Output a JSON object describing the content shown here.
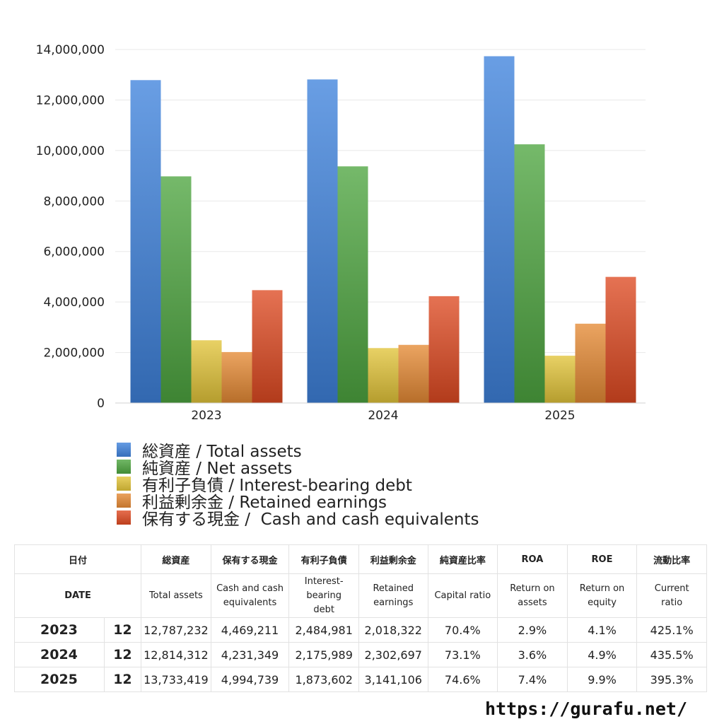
{
  "chart_data": {
    "type": "bar",
    "categories": [
      "2023",
      "2024",
      "2025"
    ],
    "ylim": [
      0,
      14000000
    ],
    "yticks": [
      "0",
      "2,000,000",
      "4,000,000",
      "6,000,000",
      "8,000,000",
      "10,000,000",
      "12,000,000",
      "14,000,000"
    ],
    "series": [
      {
        "name": "総資産 / Total assets",
        "color": "#3f82dc",
        "values": [
          12787232,
          12814312,
          13733419
        ]
      },
      {
        "name": "純資産 / Net assets",
        "color": "#4ea540",
        "values": [
          8976000,
          9372000,
          10245000
        ]
      },
      {
        "name": "有利子負債 / Interest-bearing debt",
        "color": "#e2c43a",
        "values": [
          2484981,
          2175989,
          1873602
        ]
      },
      {
        "name": "利益剰余金 / Retained earnings",
        "color": "#e58a35",
        "values": [
          2018322,
          2302697,
          3141106
        ]
      },
      {
        "name": "保有する現金 /  Cash and cash equivalents",
        "color": "#de4a22",
        "values": [
          4469211,
          4231349,
          4994739
        ]
      }
    ]
  },
  "table": {
    "header_jp": [
      "日付",
      "総資産",
      "保有する現金",
      "有利子負債",
      "利益剰余金",
      "純資産比率",
      "ROA",
      "ROE",
      "流動比率"
    ],
    "header_en": [
      "DATE",
      "Total assets",
      "Cash and cash\nequivalents",
      "Interest-\nbearing\ndebt",
      "Retained\nearnings",
      "Capital ratio",
      "Return on\nassets",
      "Return on\nequity",
      "Current\nratio"
    ],
    "rows": [
      [
        "2023",
        "12",
        "12,787,232",
        "4,469,211",
        "2,484,981",
        "2,018,322",
        "70.4%",
        "2.9%",
        "4.1%",
        "425.1%"
      ],
      [
        "2024",
        "12",
        "12,814,312",
        "4,231,349",
        "2,175,989",
        "2,302,697",
        "73.1%",
        "3.6%",
        "4.9%",
        "435.5%"
      ],
      [
        "2025",
        "12",
        "13,733,419",
        "4,994,739",
        "1,873,602",
        "3,141,106",
        "74.6%",
        "7.4%",
        "9.9%",
        "395.3%"
      ]
    ]
  },
  "footer": {
    "url": "https://gurafu.net/"
  }
}
